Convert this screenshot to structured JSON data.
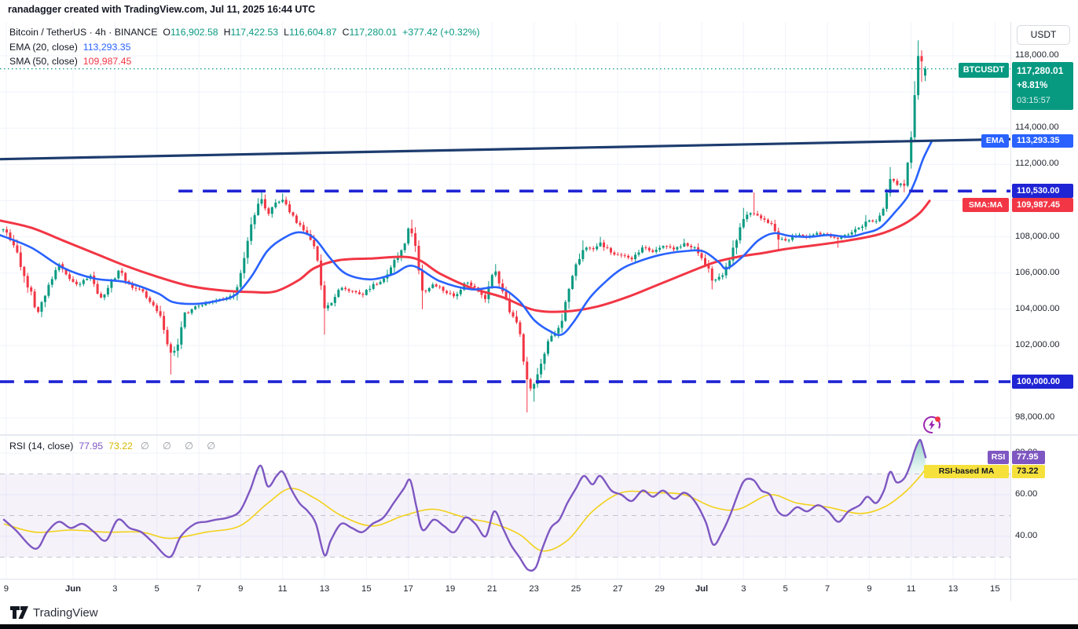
{
  "attribution": "ranadagger created with TradingView.com, Jul 11, 2025 16:44 UTC",
  "symbol_legend": {
    "title": "Bitcoin / TetherUS · 4h · BINANCE",
    "ohlc": [
      {
        "k": "O",
        "v": "116,902.58"
      },
      {
        "k": "H",
        "v": "117,422.53"
      },
      {
        "k": "L",
        "v": "116,604.87"
      },
      {
        "k": "C",
        "v": "117,280.01"
      }
    ],
    "change": "+377.42 (+0.32%)",
    "ema_label": "EMA (20, close)",
    "ema_value": "113,293.35",
    "sma_label": "SMA (50, close)",
    "sma_value": "109,987.45"
  },
  "rsi_legend": {
    "label": "RSI (14, close)",
    "value": "77.95",
    "ma_value": "73.22",
    "empty_slots": "∅ ∅ ∅ ∅"
  },
  "price_axis": {
    "currency_button": "USDT",
    "symbol_tag": "BTCUSDT",
    "last_price": "117,280.01",
    "change_pct": "+8.81%",
    "countdown": "03:15:57",
    "ema_tag": "EMA",
    "ema_value": "113,293.35",
    "level_high": "110,530.00",
    "sma_tag": "SMA:MA",
    "sma_value": "109,987.45",
    "level_low": "100,000.00"
  },
  "rsi_axis": {
    "rsi_tag": "RSI",
    "rsi_value": "77.95",
    "ma_tag": "RSI-based MA",
    "ma_value": "73.22"
  },
  "footer": {
    "brand": "TradingView"
  },
  "colors": {
    "up": "#089981",
    "down": "#f23645",
    "ema": "#2962ff",
    "sma": "#f23645",
    "trendline": "#1d3c6e",
    "level": "#1f24d4",
    "rsi": "#7e57c2",
    "rsi_ma": "#f2d117",
    "grid": "#f0f3fa",
    "band_fill": "rgba(126,87,194,0.08)",
    "ob_fill": "rgba(8,153,129,0.30)"
  },
  "chart_data": {
    "type": "candlestick",
    "symbol": "BTCUSDT",
    "exchange": "BINANCE",
    "interval": "4h",
    "title": "Bitcoin / TetherUS · 4h · BINANCE",
    "last": {
      "o": 116902.58,
      "h": 117422.53,
      "l": 116604.87,
      "c": 117280.01,
      "change": 377.42,
      "change_pct": 0.32
    },
    "current_price": 117280.01,
    "price_ticks": [
      118000,
      114000,
      112000,
      108000,
      106000,
      104000,
      102000,
      98000
    ],
    "rsi_ticks": [
      80,
      60,
      40
    ],
    "rsi_current": 77.95,
    "rsi_ma_current": 73.22,
    "levels": [
      {
        "price": 110530,
        "from_day": 8.03
      },
      {
        "price": 100000,
        "from_day": -0.49
      }
    ],
    "trendline": {
      "d1": -0.49,
      "p1": 112290,
      "d2": 47.75,
      "p2": 113395
    },
    "time_labels": [
      {
        "label": "9",
        "day": -0.19
      },
      {
        "label": "Jun",
        "day": 3,
        "month": true
      },
      {
        "label": "3",
        "day": 5
      },
      {
        "label": "5",
        "day": 7
      },
      {
        "label": "7",
        "day": 9
      },
      {
        "label": "9",
        "day": 11
      },
      {
        "label": "11",
        "day": 13
      },
      {
        "label": "13",
        "day": 15
      },
      {
        "label": "15",
        "day": 17
      },
      {
        "label": "17",
        "day": 19
      },
      {
        "label": "19",
        "day": 21
      },
      {
        "label": "21",
        "day": 23
      },
      {
        "label": "23",
        "day": 25
      },
      {
        "label": "25",
        "day": 27
      },
      {
        "label": "27",
        "day": 29
      },
      {
        "label": "29",
        "day": 31
      },
      {
        "label": "Jul",
        "day": 33,
        "month": true
      },
      {
        "label": "3",
        "day": 35
      },
      {
        "label": "5",
        "day": 37
      },
      {
        "label": "7",
        "day": 39
      },
      {
        "label": "9",
        "day": 41
      },
      {
        "label": "11",
        "day": 43
      },
      {
        "label": "13",
        "day": 45
      },
      {
        "label": "15",
        "day": 47
      }
    ],
    "price_keyframes": [
      [
        -0.3,
        108400
      ],
      [
        0.19,
        107600
      ],
      [
        0.79,
        105500
      ],
      [
        1.31,
        103800
      ],
      [
        1.69,
        104900
      ],
      [
        2.29,
        106600
      ],
      [
        2.81,
        105600
      ],
      [
        3.3,
        105300
      ],
      [
        3.79,
        105900
      ],
      [
        4.31,
        104600
      ],
      [
        4.8,
        105400
      ],
      [
        5.21,
        106200
      ],
      [
        5.7,
        105300
      ],
      [
        6.19,
        105100
      ],
      [
        6.71,
        104300
      ],
      [
        7.2,
        103600
      ],
      [
        7.61,
        101500,
        100400,
        null
      ],
      [
        7.91,
        101800
      ],
      [
        8.29,
        103700
      ],
      [
        8.81,
        104100
      ],
      [
        9.3,
        104300
      ],
      [
        9.79,
        104500
      ],
      [
        10.31,
        104600
      ],
      [
        10.8,
        105000
      ],
      [
        11.21,
        106900
      ],
      [
        11.51,
        108600
      ],
      [
        11.93,
        110250,
        null,
        110590
      ],
      [
        12.3,
        109200
      ],
      [
        12.71,
        109900
      ],
      [
        13.01,
        110000,
        null,
        110400
      ],
      [
        13.39,
        109300
      ],
      [
        13.8,
        108600
      ],
      [
        14.21,
        108200
      ],
      [
        14.59,
        107200
      ],
      [
        15.0,
        103900,
        102600,
        null
      ],
      [
        15.3,
        104300
      ],
      [
        15.79,
        105200
      ],
      [
        16.31,
        105000
      ],
      [
        16.8,
        104800
      ],
      [
        17.29,
        105300
      ],
      [
        17.81,
        105600
      ],
      [
        18.3,
        106600
      ],
      [
        18.79,
        107600
      ],
      [
        19.09,
        108700,
        null,
        108950
      ],
      [
        19.39,
        107000
      ],
      [
        19.69,
        104900,
        104000,
        null
      ],
      [
        20.21,
        105400
      ],
      [
        20.7,
        105000
      ],
      [
        21.19,
        104700
      ],
      [
        21.71,
        105500
      ],
      [
        22.2,
        105200
      ],
      [
        22.69,
        104500
      ],
      [
        23.1,
        106300,
        null,
        106500
      ],
      [
        23.51,
        105000
      ],
      [
        23.89,
        103800
      ],
      [
        24.3,
        102800
      ],
      [
        24.71,
        99600,
        98300,
        null
      ],
      [
        25.01,
        99800,
        98900,
        null
      ],
      [
        25.39,
        101200
      ],
      [
        25.8,
        102500
      ],
      [
        26.21,
        102900
      ],
      [
        26.59,
        104800
      ],
      [
        27.0,
        106400
      ],
      [
        27.38,
        107500,
        null,
        107800
      ],
      [
        27.79,
        107300
      ],
      [
        28.16,
        107700,
        null,
        108000
      ],
      [
        28.69,
        107100
      ],
      [
        29.17,
        107000
      ],
      [
        29.66,
        106800
      ],
      [
        30.19,
        107400
      ],
      [
        30.67,
        107200
      ],
      [
        31.16,
        107500
      ],
      [
        31.69,
        107300
      ],
      [
        32.17,
        107600,
        null,
        107900
      ],
      [
        32.66,
        107400
      ],
      [
        33.19,
        106500
      ],
      [
        33.56,
        105500,
        105100,
        null
      ],
      [
        33.98,
        105900
      ],
      [
        34.35,
        106600
      ],
      [
        34.76,
        108300
      ],
      [
        35.06,
        109200,
        null,
        109600
      ],
      [
        35.48,
        109300,
        null,
        110450
      ],
      [
        35.85,
        109000
      ],
      [
        36.26,
        108800
      ],
      [
        36.64,
        107900,
        107300,
        null
      ],
      [
        37.05,
        107800
      ],
      [
        37.54,
        108100
      ],
      [
        38.03,
        108000
      ],
      [
        38.55,
        108200
      ],
      [
        39.04,
        108100
      ],
      [
        39.53,
        107900,
        107400,
        null
      ],
      [
        40.01,
        108200
      ],
      [
        40.54,
        108500
      ],
      [
        40.91,
        108900,
        null,
        109200
      ],
      [
        41.33,
        108800
      ],
      [
        41.7,
        109600
      ],
      [
        42.0,
        111300,
        null,
        111860
      ],
      [
        42.3,
        110900
      ],
      [
        42.68,
        111000
      ],
      [
        42.98,
        113200
      ],
      [
        43.16,
        115900,
        null,
        116600
      ],
      [
        43.33,
        117900,
        null,
        118850
      ],
      [
        43.5,
        117700,
        null,
        118300
      ],
      [
        43.54,
        116750,
        116550,
        null
      ],
      [
        43.67,
        117280
      ]
    ],
    "ema20": [
      [
        -0.49,
        108100
      ],
      [
        1.01,
        107400
      ],
      [
        2.51,
        106300
      ],
      [
        4.01,
        105700
      ],
      [
        5.51,
        105500
      ],
      [
        7.01,
        104900
      ],
      [
        7.76,
        104400
      ],
      [
        8.89,
        104300
      ],
      [
        10.01,
        104500
      ],
      [
        10.76,
        104800
      ],
      [
        11.51,
        105800
      ],
      [
        12.26,
        107200
      ],
      [
        13.01,
        107900
      ],
      [
        13.76,
        108250
      ],
      [
        14.51,
        107930
      ],
      [
        15.26,
        106840
      ],
      [
        16.01,
        105970
      ],
      [
        17.14,
        105650
      ],
      [
        18.26,
        105930
      ],
      [
        19.2,
        106400
      ],
      [
        20.51,
        105550
      ],
      [
        22.01,
        105100
      ],
      [
        23.32,
        105200
      ],
      [
        24.26,
        104500
      ],
      [
        25.01,
        103400
      ],
      [
        25.76,
        102790
      ],
      [
        26.32,
        102600
      ],
      [
        26.89,
        103300
      ],
      [
        27.64,
        104600
      ],
      [
        28.39,
        105500
      ],
      [
        29.14,
        106200
      ],
      [
        29.89,
        106600
      ],
      [
        31.01,
        107000
      ],
      [
        32.14,
        107200
      ],
      [
        33.07,
        107200
      ],
      [
        33.82,
        106600
      ],
      [
        34.2,
        106250
      ],
      [
        34.95,
        106900
      ],
      [
        35.7,
        107800
      ],
      [
        36.45,
        108200
      ],
      [
        37.2,
        108050
      ],
      [
        38.14,
        108000
      ],
      [
        39.07,
        108100
      ],
      [
        40.01,
        108000
      ],
      [
        40.76,
        108200
      ],
      [
        41.51,
        108500
      ],
      [
        42.26,
        109400
      ],
      [
        42.82,
        110200
      ],
      [
        43.2,
        111100
      ],
      [
        43.57,
        112300
      ],
      [
        43.99,
        113293
      ]
    ],
    "sma50": [
      [
        -0.49,
        108900
      ],
      [
        1.01,
        108500
      ],
      [
        2.51,
        107800
      ],
      [
        4.01,
        107100
      ],
      [
        5.51,
        106400
      ],
      [
        7.01,
        105800
      ],
      [
        8.51,
        105300
      ],
      [
        10.01,
        105050
      ],
      [
        11.51,
        104950
      ],
      [
        12.64,
        104980
      ],
      [
        13.76,
        105600
      ],
      [
        14.51,
        106270
      ],
      [
        15.64,
        106700
      ],
      [
        17.14,
        106800
      ],
      [
        19.2,
        106840
      ],
      [
        20.51,
        105970
      ],
      [
        22.01,
        105180
      ],
      [
        23.51,
        104660
      ],
      [
        25.01,
        103960
      ],
      [
        26.51,
        103880
      ],
      [
        28.01,
        104150
      ],
      [
        29.51,
        104700
      ],
      [
        31.01,
        105400
      ],
      [
        32.51,
        106100
      ],
      [
        33.64,
        106600
      ],
      [
        34.76,
        106900
      ],
      [
        35.89,
        107100
      ],
      [
        37.01,
        107330
      ],
      [
        38.51,
        107550
      ],
      [
        40.01,
        107800
      ],
      [
        41.51,
        108150
      ],
      [
        42.64,
        108700
      ],
      [
        43.39,
        109300
      ],
      [
        43.88,
        109987
      ]
    ],
    "rsi": [
      [
        -0.3,
        48
      ],
      [
        0.26,
        43
      ],
      [
        1.2,
        34
      ],
      [
        1.76,
        42
      ],
      [
        2.32,
        47
      ],
      [
        2.89,
        44
      ],
      [
        3.45,
        46
      ],
      [
        4.01,
        42
      ],
      [
        4.57,
        38
      ],
      [
        5.14,
        48
      ],
      [
        5.7,
        44
      ],
      [
        6.26,
        42
      ],
      [
        6.82,
        37
      ],
      [
        7.61,
        30
      ],
      [
        8.14,
        40
      ],
      [
        8.81,
        46
      ],
      [
        9.34,
        47
      ],
      [
        9.82,
        48
      ],
      [
        10.39,
        49
      ],
      [
        10.95,
        52
      ],
      [
        11.44,
        62
      ],
      [
        11.93,
        74
      ],
      [
        12.3,
        64
      ],
      [
        12.71,
        69
      ],
      [
        13.01,
        71
      ],
      [
        13.39,
        63
      ],
      [
        13.8,
        56
      ],
      [
        14.21,
        52
      ],
      [
        14.59,
        46
      ],
      [
        15.0,
        31
      ],
      [
        15.3,
        38
      ],
      [
        15.79,
        46
      ],
      [
        16.31,
        44
      ],
      [
        16.8,
        42
      ],
      [
        17.29,
        46
      ],
      [
        17.81,
        49
      ],
      [
        18.3,
        56
      ],
      [
        18.79,
        63
      ],
      [
        19.09,
        67
      ],
      [
        19.39,
        54
      ],
      [
        19.69,
        43
      ],
      [
        20.21,
        48
      ],
      [
        20.7,
        45
      ],
      [
        21.19,
        42
      ],
      [
        21.71,
        49
      ],
      [
        22.2,
        46
      ],
      [
        22.69,
        40
      ],
      [
        23.1,
        52
      ],
      [
        23.51,
        44
      ],
      [
        23.89,
        36
      ],
      [
        24.3,
        30
      ],
      [
        24.71,
        24
      ],
      [
        25.08,
        25
      ],
      [
        25.39,
        34
      ],
      [
        25.8,
        44
      ],
      [
        26.21,
        48
      ],
      [
        26.59,
        56
      ],
      [
        27.0,
        63
      ],
      [
        27.38,
        69
      ],
      [
        27.79,
        65
      ],
      [
        28.16,
        69
      ],
      [
        28.69,
        62
      ],
      [
        29.17,
        60
      ],
      [
        29.66,
        57
      ],
      [
        30.19,
        62
      ],
      [
        30.67,
        59
      ],
      [
        31.16,
        62
      ],
      [
        31.69,
        58
      ],
      [
        32.17,
        61
      ],
      [
        32.66,
        57
      ],
      [
        33.19,
        47
      ],
      [
        33.56,
        36
      ],
      [
        33.98,
        42
      ],
      [
        34.35,
        50
      ],
      [
        34.76,
        61
      ],
      [
        35.06,
        67
      ],
      [
        35.48,
        67
      ],
      [
        35.85,
        62
      ],
      [
        36.26,
        60
      ],
      [
        36.64,
        52
      ],
      [
        37.05,
        50
      ],
      [
        37.54,
        54
      ],
      [
        38.03,
        52
      ],
      [
        38.55,
        55
      ],
      [
        39.04,
        52
      ],
      [
        39.53,
        47
      ],
      [
        40.01,
        52
      ],
      [
        40.54,
        55
      ],
      [
        40.91,
        59
      ],
      [
        41.33,
        56
      ],
      [
        41.7,
        62
      ],
      [
        42.0,
        71
      ],
      [
        42.3,
        66
      ],
      [
        42.68,
        68
      ],
      [
        42.98,
        75
      ],
      [
        43.16,
        81
      ],
      [
        43.35,
        85.5
      ],
      [
        43.46,
        86
      ],
      [
        43.61,
        81
      ],
      [
        43.69,
        77.95
      ]
    ],
    "rsi_ma": [
      [
        -0.3,
        46
      ],
      [
        1.2,
        42
      ],
      [
        2.89,
        43
      ],
      [
        4.57,
        42
      ],
      [
        6.26,
        42
      ],
      [
        7.61,
        39
      ],
      [
        9.34,
        42
      ],
      [
        10.95,
        45
      ],
      [
        12.3,
        56
      ],
      [
        13.39,
        63
      ],
      [
        14.59,
        58
      ],
      [
        15.79,
        50
      ],
      [
        17.29,
        45
      ],
      [
        18.79,
        50
      ],
      [
        20.21,
        53
      ],
      [
        21.71,
        49
      ],
      [
        23.1,
        46
      ],
      [
        24.3,
        41
      ],
      [
        25.39,
        33
      ],
      [
        26.59,
        38
      ],
      [
        27.79,
        52
      ],
      [
        29.17,
        61
      ],
      [
        30.67,
        61
      ],
      [
        32.17,
        60
      ],
      [
        33.56,
        54
      ],
      [
        34.76,
        53
      ],
      [
        36.26,
        60
      ],
      [
        37.54,
        56
      ],
      [
        39.04,
        54
      ],
      [
        40.54,
        51
      ],
      [
        41.7,
        54
      ],
      [
        42.68,
        61
      ],
      [
        43.35,
        68
      ],
      [
        43.75,
        73.22
      ]
    ],
    "rsi_bands": [
      70,
      50,
      30
    ],
    "rsi_band_fill": [
      30,
      70
    ]
  }
}
